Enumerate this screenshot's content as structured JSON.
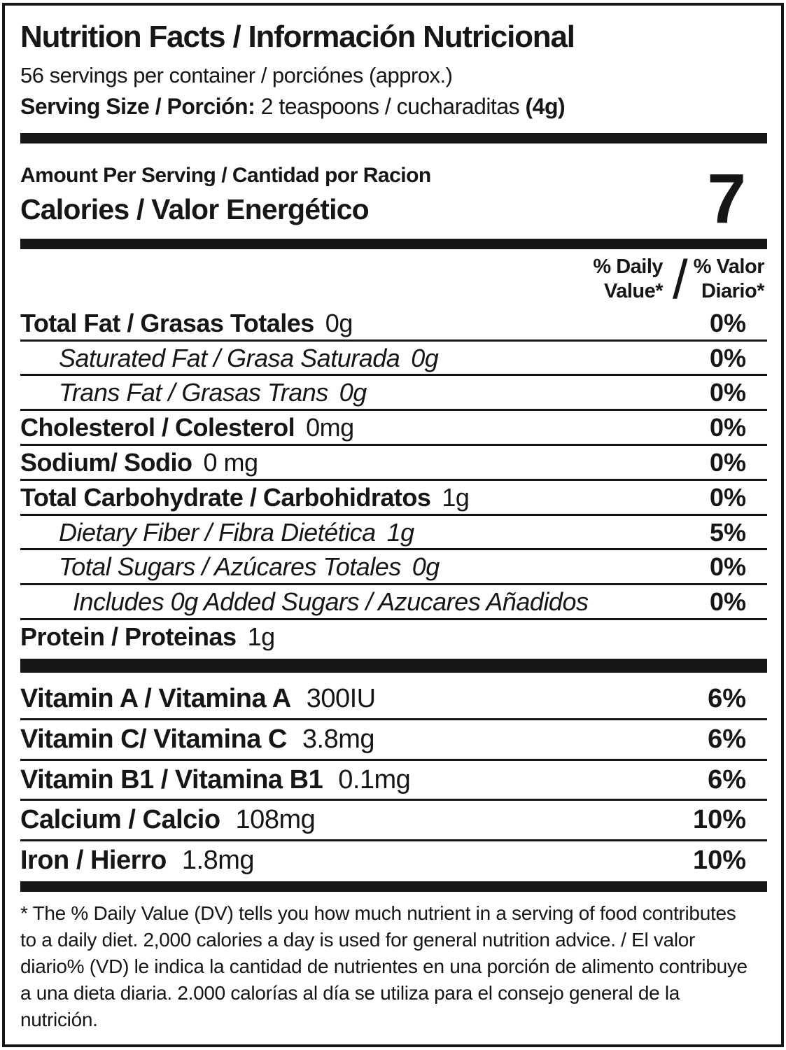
{
  "colors": {
    "ink": "#161616",
    "background": "#ffffff"
  },
  "header": {
    "title": "Nutrition Facts / Información Nutricional",
    "servings_per_container": "56 servings per container / porciónes (approx.)",
    "serving_size_label": "Serving Size / Porción:",
    "serving_size_value": " 2 teaspoons / cucharaditas ",
    "serving_size_weight": "(4g)"
  },
  "calories": {
    "amount_per_serving": "Amount Per Serving / Cantidad por Racion",
    "label": "Calories / Valor Energético",
    "value": "7"
  },
  "daily_value_header": {
    "en_line1": "% Daily",
    "en_line2": "Value*",
    "slash": "/",
    "es_line1": "% Valor",
    "es_line2": "Diario*"
  },
  "nutrients": [
    {
      "label": "Total Fat / Grasas Totales",
      "amount": "0g",
      "dv": "0%",
      "style": "bold",
      "indent": 0
    },
    {
      "label": "Saturated Fat / Grasa Saturada",
      "amount": "0g",
      "dv": "0%",
      "style": "italic",
      "indent": 1
    },
    {
      "label": "Trans Fat / Grasas Trans",
      "amount": "0g",
      "dv": "0%",
      "style": "italic",
      "indent": 1
    },
    {
      "label": "Cholesterol / Colesterol",
      "amount": "0mg",
      "dv": "0%",
      "style": "bold",
      "indent": 0
    },
    {
      "label": "Sodium/ Sodio",
      "amount": "0 mg",
      "dv": "0%",
      "style": "bold",
      "indent": 0
    },
    {
      "label": "Total Carbohydrate / Carbohidratos",
      "amount": "1g",
      "dv": "0%",
      "style": "bold",
      "indent": 0
    },
    {
      "label": "Dietary Fiber / Fibra Dietética",
      "amount": "1g",
      "dv": "5%",
      "style": "italic",
      "indent": 1
    },
    {
      "label": "Total Sugars / Azúcares Totales",
      "amount": "0g",
      "dv": "0%",
      "style": "italic",
      "indent": 1
    },
    {
      "label": "Includes 0g Added Sugars / Azucares Añadidos",
      "amount": "",
      "dv": "0%",
      "style": "italic",
      "indent": 2
    },
    {
      "label": "Protein / Proteinas",
      "amount": "1g",
      "dv": "",
      "style": "bold",
      "indent": 0
    }
  ],
  "micronutrients": [
    {
      "label": "Vitamin A / Vitamina A",
      "amount": "300IU",
      "dv": "6%"
    },
    {
      "label": "Vitamin C/ Vitamina C",
      "amount": "3.8mg",
      "dv": "6%"
    },
    {
      "label": "Vitamin B1 / Vitamina B1",
      "amount": "0.1mg",
      "dv": "6%"
    },
    {
      "label": "Calcium / Calcio",
      "amount": "108mg",
      "dv": "10%"
    },
    {
      "label": "Iron / Hierro",
      "amount": "1.8mg",
      "dv": "10%"
    }
  ],
  "footnote": "* The % Daily Value (DV) tells you how much nutrient in a serving of food contributes to a daily diet. 2,000 calories a day is used for general nutrition advice. / El valor diario% (VD) le indica la cantidad de nutrientes en una porción de alimento contribuye a una dieta diaria. 2.000 calorías al día se utiliza para el consejo general de la nutrición."
}
